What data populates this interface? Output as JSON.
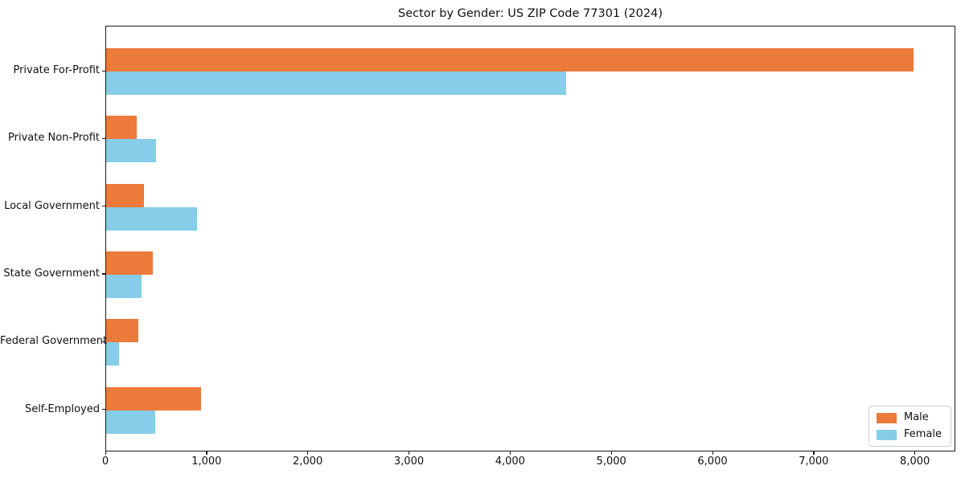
{
  "chart_data": {
    "type": "bar",
    "orientation": "horizontal",
    "title": "Sector by Gender: US ZIP Code 77301 (2024)",
    "categories": [
      "Private For-Profit",
      "Private Non-Profit",
      "Local Government",
      "State Government",
      "Federal Government",
      "Self-Employed"
    ],
    "series": [
      {
        "name": "Male",
        "color": "#ec7a3b",
        "values": [
          7980,
          300,
          375,
          460,
          315,
          935
        ]
      },
      {
        "name": "Female",
        "color": "#85cde8",
        "values": [
          4545,
          490,
          895,
          350,
          125,
          485
        ]
      }
    ],
    "xlim": [
      0,
      8400
    ],
    "xticks": [
      0,
      1000,
      2000,
      3000,
      4000,
      5000,
      6000,
      7000,
      8000
    ],
    "xtick_labels": [
      "0",
      "1,000",
      "2,000",
      "3,000",
      "4,000",
      "5,000",
      "6,000",
      "7,000",
      "8,000"
    ],
    "xlabel": "",
    "ylabel": "",
    "grid": false,
    "legend_position": "lower right",
    "colors": {
      "spine": "#1a1a1a",
      "text": "#111111",
      "legend_border": "#cccccc",
      "background": "#ffffff"
    }
  }
}
